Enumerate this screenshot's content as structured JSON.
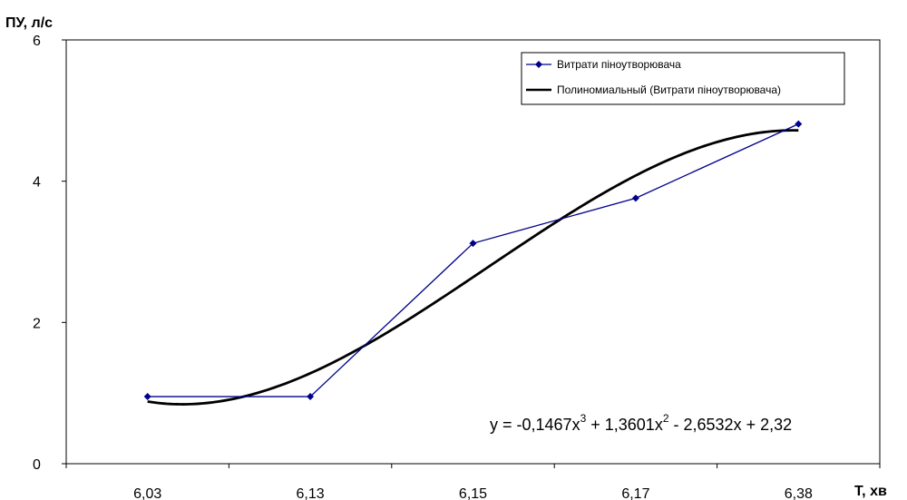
{
  "chart_data": {
    "type": "line",
    "ylabel": "ПУ, л/с",
    "xlabel": "Т, хв",
    "categories": [
      "6,03",
      "6,13",
      "6,15",
      "6,17",
      "6,38"
    ],
    "ylim": [
      0,
      6
    ],
    "yticks": [
      "0",
      "2",
      "4",
      "6"
    ],
    "grid": false,
    "series": [
      {
        "name": "Витрати піноутворювача",
        "values": [
          0.95,
          0.95,
          3.12,
          3.76,
          4.81
        ],
        "color": "#00008B",
        "marker": "diamond"
      }
    ],
    "trendline": {
      "name": "Полиномиальный (Витрати піноутворювача)",
      "type": "polynomial",
      "order": 3,
      "coefficients": [
        -0.1467,
        1.3601,
        -2.6532,
        2.32
      ],
      "color": "#000000"
    },
    "equation": {
      "main": "y = -0,1467x",
      "sup1": "3",
      "mid": " + 1,3601x",
      "sup2": "2",
      "tail": " - 2,6532x + 2,32"
    },
    "legend_position": "top-right"
  }
}
